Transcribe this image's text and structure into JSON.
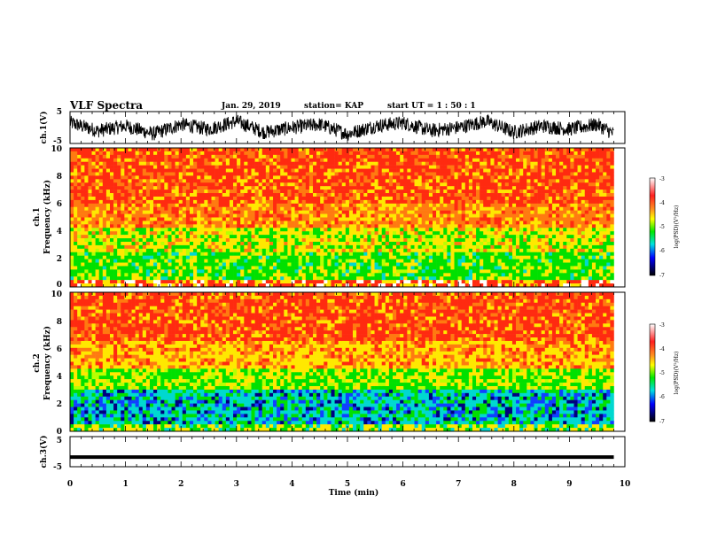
{
  "header": {
    "title": "VLF Spectra",
    "date": "Jan. 29, 2019",
    "station": "station= KAP",
    "start": "start  UT  =   1 : 50 : 1"
  },
  "chart_data": [
    {
      "type": "line",
      "panel": "ch1-waveform",
      "ylabel": "ch.1(V)",
      "ylim": [
        -5,
        5
      ],
      "yticks": [
        "5",
        "-5"
      ],
      "xlim": [
        0,
        10
      ],
      "color": "#000000",
      "description_values": "continuous noisy waveform between about -5 and 5 V",
      "x": [
        0,
        0.5,
        1,
        1.5,
        2,
        2.5,
        3,
        3.5,
        4,
        4.5,
        5,
        5.5,
        6,
        6.5,
        7,
        7.5,
        8,
        8.5,
        9,
        9.5,
        9.8
      ],
      "y": [
        1.5,
        -1,
        0.5,
        -2,
        1,
        -0.5,
        2,
        -1.5,
        0,
        1,
        -2,
        0.5,
        1.5,
        -1,
        0,
        2,
        -1.5,
        0.5,
        -0.5,
        1,
        -2
      ]
    },
    {
      "type": "heatmap",
      "panel": "ch1-spectrogram",
      "ylabel_line1": "ch.1",
      "ylabel_line2": "Frequency (kHz)",
      "ylim": [
        0,
        10
      ],
      "yticks": [
        "0",
        "2",
        "4",
        "6",
        "8",
        "10"
      ],
      "xlim": [
        0,
        9.8
      ],
      "colorbar": {
        "label": "log(PSD)(V²/Hz)",
        "range": [
          -7,
          -3
        ],
        "ticks": [
          "-3",
          "-4",
          "-5",
          "-6",
          "-7"
        ],
        "colors": [
          "#ffffff",
          "#ff3020",
          "#ff9020",
          "#ffff00",
          "#00e800",
          "#00e0e0",
          "#0000ff",
          "#000000"
        ]
      }
    },
    {
      "type": "heatmap",
      "panel": "ch2-spectrogram",
      "ylabel_line1": "ch.2",
      "ylabel_line2": "Frequency (kHz)",
      "ylim": [
        0,
        10
      ],
      "yticks": [
        "0",
        "2",
        "4",
        "6",
        "8",
        "10"
      ],
      "xlim": [
        0,
        9.8
      ],
      "colorbar": {
        "label": "log(PSD)(V²/Hz)",
        "range": [
          -7,
          -3
        ],
        "ticks": [
          "-3",
          "-4",
          "-5",
          "-6",
          "-7"
        ],
        "colors": [
          "#ffffff",
          "#ff3020",
          "#ff9020",
          "#ffff00",
          "#00e800",
          "#00e0e0",
          "#0000ff",
          "#000000"
        ]
      }
    },
    {
      "type": "line",
      "panel": "ch3-waveform",
      "ylabel": "ch.3(V)",
      "ylim": [
        -5,
        5
      ],
      "yticks": [
        "5",
        "-5"
      ],
      "xlim": [
        0,
        10
      ],
      "color": "#000000",
      "x": [
        0,
        9.8
      ],
      "y": [
        -1.8,
        -1.8
      ]
    }
  ],
  "xaxis": {
    "label": "Time  (min)",
    "ticks": [
      "0",
      "1",
      "2",
      "3",
      "4",
      "5",
      "6",
      "7",
      "8",
      "9",
      "10"
    ]
  }
}
